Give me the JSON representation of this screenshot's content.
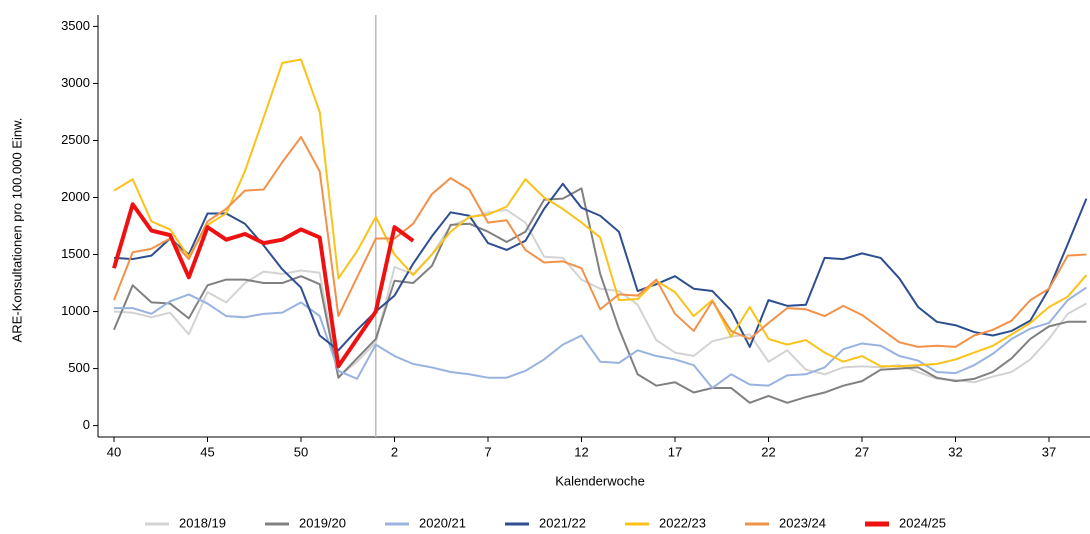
{
  "chart_data": {
    "type": "line",
    "x_label": "Kalenderwoche",
    "y_label": "ARE-Konsultationen pro 100.000 Einw.",
    "categories": [
      "40",
      null,
      null,
      null,
      null,
      "45",
      null,
      null,
      null,
      null,
      "50",
      null,
      null,
      null,
      null,
      "2",
      null,
      null,
      null,
      null,
      "7",
      null,
      null,
      null,
      null,
      "12",
      null,
      null,
      null,
      null,
      "17",
      null,
      null,
      null,
      null,
      "22",
      null,
      null,
      null,
      null,
      "27",
      null,
      null,
      null,
      null,
      "32",
      null,
      null,
      null,
      null,
      "37",
      null,
      null
    ],
    "ylim": [
      -100,
      3600
    ],
    "yticks": [
      0,
      500,
      1000,
      1500,
      2000,
      2500,
      3000,
      3500
    ],
    "legend": "bottom",
    "series": [
      {
        "name": "2018/19",
        "color": "#d3d3d3",
        "values": [
          1000,
          990,
          950,
          990,
          800,
          1170,
          1080,
          1250,
          1350,
          1330,
          1360,
          1340,
          430,
          560,
          730,
          1390,
          1330,
          1500,
          1750,
          1820,
          1870,
          1890,
          1780,
          1480,
          1470,
          1280,
          1200,
          1180,
          1060,
          750,
          640,
          610,
          740,
          780,
          800,
          560,
          660,
          490,
          450,
          510,
          520,
          510,
          530,
          470,
          410,
          400,
          380,
          430,
          470,
          580,
          760,
          980,
          1070
        ]
      },
      {
        "name": "2019/20",
        "color": "#808080",
        "values": [
          840,
          1230,
          1080,
          1070,
          940,
          1230,
          1280,
          1280,
          1250,
          1250,
          1310,
          1240,
          420,
          590,
          760,
          1270,
          1250,
          1400,
          1760,
          1770,
          1700,
          1610,
          1700,
          1980,
          1990,
          2080,
          1330,
          850,
          450,
          350,
          380,
          290,
          330,
          330,
          200,
          260,
          200,
          250,
          290,
          350,
          390,
          490,
          500,
          510,
          420,
          390,
          410,
          470,
          590,
          760,
          870,
          910,
          910
        ]
      },
      {
        "name": "2020/21",
        "color": "#98b3e0",
        "values": [
          1030,
          1030,
          980,
          1090,
          1150,
          1070,
          960,
          950,
          980,
          990,
          1080,
          960,
          480,
          410,
          710,
          610,
          540,
          510,
          470,
          450,
          420,
          420,
          480,
          580,
          710,
          790,
          560,
          550,
          660,
          610,
          580,
          530,
          330,
          450,
          360,
          350,
          440,
          450,
          510,
          670,
          720,
          700,
          610,
          570,
          470,
          460,
          530,
          630,
          760,
          850,
          900,
          1100,
          1210
        ]
      },
      {
        "name": "2021/22",
        "color": "#2d4e8f",
        "values": [
          1470,
          1460,
          1490,
          1640,
          1500,
          1860,
          1860,
          1770,
          1580,
          1370,
          1210,
          790,
          660,
          840,
          1000,
          1140,
          1420,
          1660,
          1870,
          1840,
          1600,
          1540,
          1620,
          1900,
          2120,
          1910,
          1840,
          1700,
          1180,
          1240,
          1310,
          1200,
          1180,
          1010,
          690,
          1100,
          1050,
          1060,
          1470,
          1460,
          1510,
          1470,
          1290,
          1040,
          910,
          880,
          820,
          790,
          830,
          920,
          1200,
          1590,
          1990
        ]
      },
      {
        "name": "2022/23",
        "color": "#fbc31a",
        "values": [
          2060,
          2160,
          1790,
          1720,
          1480,
          1760,
          1860,
          2230,
          2700,
          3180,
          3210,
          2750,
          1290,
          1530,
          1830,
          1500,
          1320,
          1500,
          1700,
          1830,
          1850,
          1920,
          2160,
          2000,
          1900,
          1780,
          1650,
          1100,
          1110,
          1270,
          1170,
          960,
          1100,
          780,
          1040,
          760,
          710,
          750,
          640,
          560,
          610,
          520,
          520,
          530,
          540,
          580,
          640,
          700,
          800,
          900,
          1040,
          1130,
          1320
        ]
      },
      {
        "name": "2023/24",
        "color": "#f2924a",
        "values": [
          1100,
          1520,
          1550,
          1640,
          1460,
          1790,
          1900,
          2060,
          2070,
          2310,
          2530,
          2230,
          960,
          1300,
          1640,
          1640,
          1770,
          2030,
          2170,
          2070,
          1780,
          1800,
          1540,
          1430,
          1440,
          1380,
          1020,
          1150,
          1140,
          1280,
          980,
          830,
          1090,
          830,
          760,
          900,
          1030,
          1020,
          960,
          1050,
          970,
          850,
          730,
          690,
          700,
          690,
          790,
          840,
          920,
          1100,
          1200,
          1490,
          1500
        ]
      },
      {
        "name": "2024/25",
        "color": "#ee1111",
        "values": [
          1380,
          1940,
          1710,
          1670,
          1300,
          1740,
          1630,
          1680,
          1600,
          1630,
          1720,
          1650,
          520,
          760,
          1000,
          1740,
          1620,
          null,
          null,
          null,
          null,
          null,
          null,
          null,
          null,
          null,
          null,
          null,
          null,
          null,
          null,
          null,
          null,
          null,
          null,
          null,
          null,
          null,
          null,
          null,
          null,
          null,
          null,
          null,
          null,
          null,
          null,
          null,
          null,
          null,
          null,
          null,
          null
        ]
      }
    ]
  }
}
